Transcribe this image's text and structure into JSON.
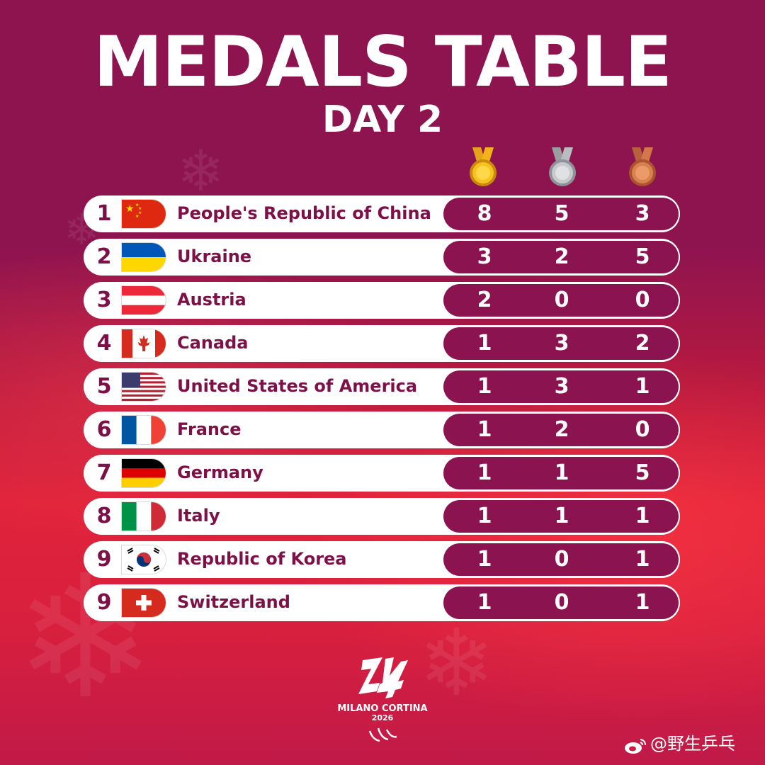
{
  "header": {
    "title": "MEDALS TABLE",
    "subtitle": "DAY 2"
  },
  "medal_icons": {
    "gold": "gold-medal-icon",
    "silver": "silver-medal-icon",
    "bronze": "bronze-medal-icon"
  },
  "colors": {
    "row_text": "#7d1046",
    "count_pill": "#8b1450",
    "gold": "#f2b21a",
    "silver": "#b9bcc0",
    "bronze": "#d4764a"
  },
  "rows": [
    {
      "rank": "1",
      "country": "People's Republic of China",
      "flag": "china-flag-icon",
      "gold": "8",
      "silver": "5",
      "bronze": "3"
    },
    {
      "rank": "2",
      "country": "Ukraine",
      "flag": "ukraine-flag-icon",
      "gold": "3",
      "silver": "2",
      "bronze": "5"
    },
    {
      "rank": "3",
      "country": "Austria",
      "flag": "austria-flag-icon",
      "gold": "2",
      "silver": "0",
      "bronze": "0"
    },
    {
      "rank": "4",
      "country": "Canada",
      "flag": "canada-flag-icon",
      "gold": "1",
      "silver": "3",
      "bronze": "2"
    },
    {
      "rank": "5",
      "country": "United States of America",
      "flag": "usa-flag-icon",
      "gold": "1",
      "silver": "3",
      "bronze": "1"
    },
    {
      "rank": "6",
      "country": "France",
      "flag": "france-flag-icon",
      "gold": "1",
      "silver": "2",
      "bronze": "0"
    },
    {
      "rank": "7",
      "country": "Germany",
      "flag": "germany-flag-icon",
      "gold": "1",
      "silver": "1",
      "bronze": "5"
    },
    {
      "rank": "8",
      "country": "Italy",
      "flag": "italy-flag-icon",
      "gold": "1",
      "silver": "1",
      "bronze": "1"
    },
    {
      "rank": "9",
      "country": "Republic of Korea",
      "flag": "korea-flag-icon",
      "gold": "1",
      "silver": "0",
      "bronze": "1"
    },
    {
      "rank": "9",
      "country": "Switzerland",
      "flag": "switzerland-flag-icon",
      "gold": "1",
      "silver": "0",
      "bronze": "1"
    }
  ],
  "footer": {
    "logo_text": "MILANO CORTINA",
    "logo_year": "2026",
    "watermark": "@野生乒乓"
  }
}
